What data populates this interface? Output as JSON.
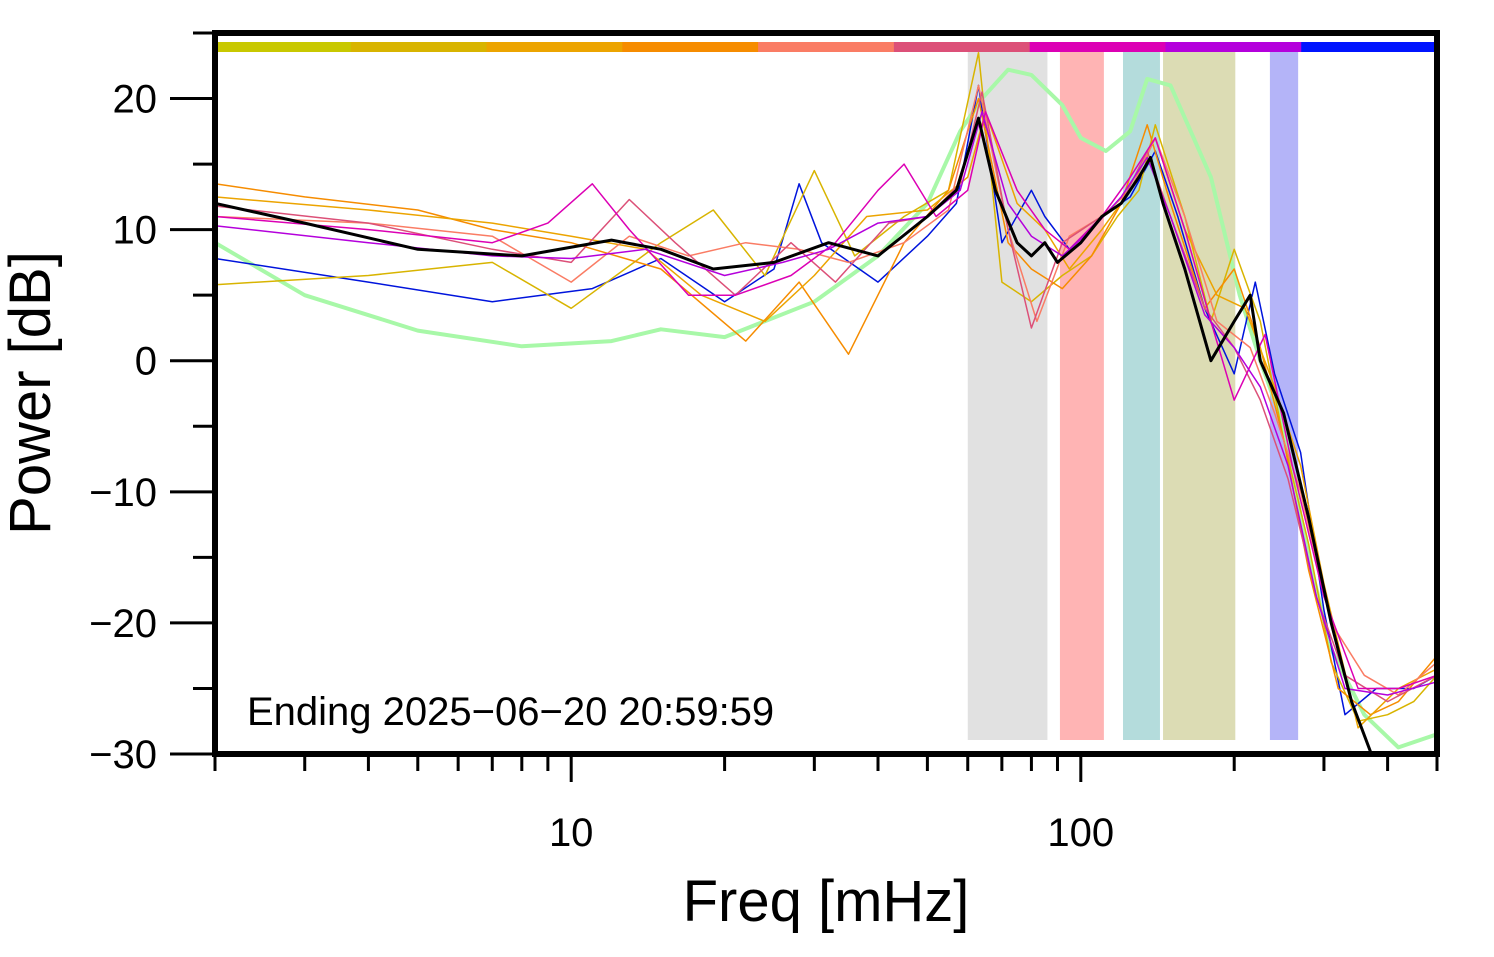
{
  "chart_data": {
    "type": "line",
    "xlabel": "Freq [mHz]",
    "ylabel": "Power [dB]",
    "x_scale": "log",
    "xlim": [
      2,
      500
    ],
    "ylim": [
      -30,
      25
    ],
    "x_tick_labels": [
      "10",
      "100"
    ],
    "y_tick_labels": [
      "20",
      "10",
      "0",
      "−10",
      "−20",
      "−30"
    ],
    "y_ticks": [
      20,
      10,
      0,
      -10,
      -20,
      -30
    ],
    "annotation": "Ending 2025−06−20 20:59:59",
    "grid": false,
    "legend": "none",
    "top_color_bar": [
      "#c8c800",
      "#d8b400",
      "#eca400",
      "#f68c00",
      "#fa7c64",
      "#dc5078",
      "#dc00b4",
      "#b400dc",
      "#0014ff"
    ],
    "bands": [
      {
        "x0": 60,
        "x1": 86,
        "color": "#e1e1e1"
      },
      {
        "x0": 91,
        "x1": 111,
        "color": "#ffb4b4"
      },
      {
        "x0": 121,
        "x1": 143,
        "color": "#b4dcdc"
      },
      {
        "x0": 145,
        "x1": 201,
        "color": "#dcdcb4"
      },
      {
        "x0": 235,
        "x1": 267,
        "color": "#b4b4f8"
      }
    ],
    "series": [
      {
        "color": "#a8f8a8",
        "width": 4,
        "x": [
          2,
          3,
          5,
          8,
          12,
          15,
          20,
          30,
          40,
          50,
          58,
          64,
          72,
          80,
          92,
          100,
          112,
          125,
          135,
          150,
          180,
          205,
          225,
          250,
          280,
          310,
          360,
          420,
          500
        ],
        "y": [
          9,
          5,
          2.3,
          1.1,
          1.5,
          2.4,
          1.8,
          4.5,
          8,
          12,
          17.5,
          20,
          22.2,
          21.8,
          19.5,
          17,
          16,
          17.5,
          21.5,
          21,
          14,
          5,
          0,
          -5,
          -15,
          -22,
          -27,
          -29.5,
          -28.5
        ]
      },
      {
        "color": "#0014dc",
        "width": 1.5,
        "x": [
          2,
          4,
          7,
          11,
          15,
          20,
          25,
          28,
          31,
          40,
          50,
          57,
          63,
          70,
          80,
          85,
          95,
          110,
          125,
          140,
          155,
          175,
          200,
          220,
          240,
          270,
          300,
          330,
          380,
          450,
          500
        ],
        "y": [
          7.8,
          6,
          4.5,
          5.5,
          7.8,
          4.5,
          7,
          13.5,
          9,
          6,
          9.5,
          12,
          21,
          9,
          13,
          11,
          8.5,
          11,
          12.5,
          16,
          11,
          4,
          -1,
          6,
          -1,
          -7,
          -19,
          -27,
          -25,
          -25,
          -24
        ]
      },
      {
        "color": "#d8b400",
        "width": 1.5,
        "x": [
          2,
          4,
          7,
          10,
          15,
          19,
          24,
          30,
          36,
          45,
          55,
          63,
          70,
          80,
          92,
          105,
          118,
          130,
          140,
          160,
          180,
          200,
          225,
          250,
          280,
          310,
          350,
          400,
          450,
          500
        ],
        "y": [
          5.8,
          6.5,
          7.5,
          4,
          9,
          11.5,
          6.5,
          14.5,
          8,
          11,
          13,
          23.5,
          6,
          4.5,
          6.5,
          8,
          11,
          13,
          18,
          11,
          3,
          8.5,
          3,
          -6,
          -14,
          -23,
          -27.5,
          -27,
          -26,
          -24
        ]
      },
      {
        "color": "#f68c00",
        "width": 1.5,
        "x": [
          2,
          3,
          5,
          7,
          10,
          15,
          22,
          28,
          35,
          45,
          55,
          63,
          72,
          80,
          92,
          105,
          120,
          135,
          150,
          175,
          200,
          225,
          250,
          280,
          320,
          370,
          420,
          500
        ],
        "y": [
          13.5,
          12.5,
          11.5,
          10,
          9,
          7,
          1.5,
          6,
          0.5,
          9,
          13,
          20,
          9,
          7,
          5.5,
          8,
          12,
          18,
          12,
          4,
          7,
          1,
          -6,
          -16,
          -25,
          -27,
          -26,
          -22.5
        ]
      },
      {
        "color": "#eca400",
        "width": 1.5,
        "x": [
          2,
          4,
          7,
          10,
          14,
          18,
          24,
          30,
          38,
          50,
          60,
          65,
          75,
          85,
          95,
          110,
          125,
          140,
          160,
          185,
          210,
          240,
          270,
          300,
          350,
          420,
          500
        ],
        "y": [
          12.5,
          11.5,
          10.5,
          9.5,
          8.5,
          5,
          3,
          6.5,
          11,
          11.5,
          14,
          19,
          12,
          10,
          7,
          10,
          13,
          17,
          10,
          5,
          4,
          -2,
          -8,
          -17,
          -28,
          -25,
          -23.5
        ]
      },
      {
        "color": "#fa7c64",
        "width": 1.5,
        "x": [
          2,
          4,
          7,
          10,
          13,
          17,
          22,
          28,
          35,
          45,
          55,
          63,
          72,
          82,
          95,
          110,
          125,
          140,
          160,
          185,
          215,
          240,
          270,
          310,
          360,
          420,
          500
        ],
        "y": [
          11,
          10.5,
          9.5,
          6,
          9.5,
          8,
          9,
          8.5,
          7.5,
          9,
          11.5,
          21,
          10,
          3,
          9.5,
          11,
          13,
          17,
          11,
          3,
          1,
          -4,
          -10,
          -20,
          -24,
          -25.5,
          -23
        ]
      },
      {
        "color": "#dc5078",
        "width": 1.5,
        "x": [
          2,
          4,
          7,
          10,
          13,
          16,
          21,
          27,
          33,
          42,
          50,
          58,
          64,
          72,
          80,
          92,
          105,
          120,
          135,
          150,
          175,
          200,
          225,
          255,
          290,
          330,
          400,
          500
        ],
        "y": [
          11.8,
          10.5,
          8.5,
          7.5,
          12.3,
          9,
          5,
          9,
          6,
          10.5,
          11,
          13.5,
          20.5,
          10,
          2.5,
          9,
          10.5,
          12,
          16,
          11,
          4,
          1,
          -3,
          -9,
          -18,
          -24,
          -26,
          -24
        ]
      },
      {
        "color": "#dc00b4",
        "width": 1.5,
        "x": [
          2,
          4,
          7,
          9,
          11,
          13,
          17,
          21,
          27,
          33,
          40,
          45,
          52,
          60,
          65,
          75,
          85,
          95,
          110,
          125,
          140,
          160,
          180,
          200,
          230,
          260,
          300,
          350,
          420,
          500
        ],
        "y": [
          11,
          10,
          9,
          10.5,
          13.5,
          10,
          5,
          5,
          6.5,
          9,
          13,
          15,
          11,
          13,
          19,
          13,
          10,
          8.5,
          11,
          14,
          17,
          10,
          3,
          -3,
          2,
          -8,
          -18,
          -25,
          -25,
          -24
        ]
      },
      {
        "color": "#b400dc",
        "width": 1.5,
        "x": [
          2,
          4,
          7,
          10,
          14,
          20,
          26,
          32,
          40,
          50,
          58,
          64,
          72,
          80,
          92,
          105,
          120,
          135,
          150,
          175,
          200,
          225,
          255,
          290,
          330,
          400,
          500
        ],
        "y": [
          10.3,
          9,
          8,
          7.8,
          8.5,
          6.5,
          7.5,
          8.5,
          10.5,
          11,
          13,
          19,
          12,
          9.5,
          8,
          10,
          12.5,
          15.5,
          11,
          3.5,
          1,
          -2,
          -8,
          -18,
          -25,
          -25.5,
          -24.5
        ]
      },
      {
        "color": "#000000",
        "width": 3,
        "x": [
          2,
          3,
          5,
          8,
          12,
          15,
          19,
          25,
          32,
          40,
          50,
          57,
          63,
          68,
          75,
          80,
          85,
          90,
          100,
          110,
          120,
          130,
          137,
          145,
          160,
          180,
          200,
          215,
          225,
          250,
          280,
          310,
          340,
          380
        ],
        "y": [
          12,
          10.5,
          8.5,
          8,
          9.2,
          8.5,
          7,
          7.5,
          9,
          8,
          11,
          13,
          18.5,
          13,
          9,
          8,
          9,
          7.5,
          9,
          11,
          12,
          14,
          15.5,
          12,
          7,
          0,
          3,
          5,
          0,
          -4,
          -12,
          -20,
          -26,
          -31
        ]
      }
    ]
  }
}
